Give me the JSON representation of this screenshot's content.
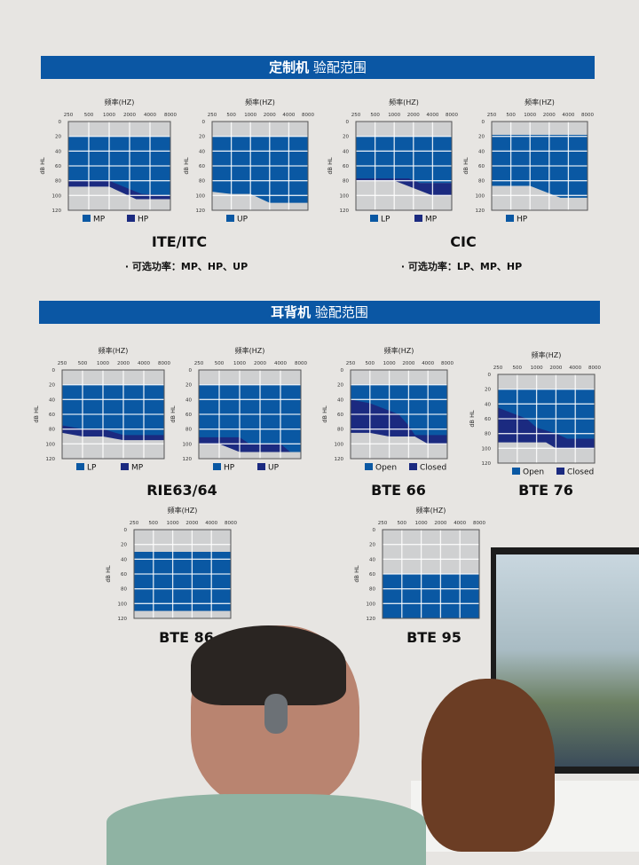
{
  "section1": {
    "title_bold": "定制机",
    "title_rest": "验配范围",
    "groups": [
      {
        "model": "ITE/ITC",
        "note": "· 可选功率：MP、HP、UP"
      },
      {
        "model": "CIC",
        "note": "· 可选功率：LP、MP、HP"
      }
    ]
  },
  "section2": {
    "title_bold": "耳背机",
    "title_rest": "验配范围",
    "models": [
      "RIE63/64",
      "BTE 66",
      "BTE 76",
      "BTE 86",
      "BTE 95"
    ]
  },
  "colors": {
    "banner": "#0b57a4",
    "light_blue": "#0a58a3",
    "dark_blue": "#1b2a80",
    "gray_area": "#cfd0d1",
    "grid": "#ffffff"
  },
  "chart_data": [
    {
      "type": "area",
      "xlabel": "频率(HZ)",
      "ylabel": "dB HL",
      "x_ticks": [
        250,
        500,
        1000,
        2000,
        4000,
        8000
      ],
      "y_ticks": [
        0,
        20,
        40,
        60,
        80,
        100,
        120
      ],
      "xscale": "log",
      "ylim": [
        0,
        120
      ],
      "y_inverted": true,
      "grid": true,
      "legend": "bottom",
      "series": [
        {
          "name": "HP",
          "color": "dark",
          "top": [
            [
              250,
              20
            ],
            [
              8000,
              20
            ]
          ],
          "bottom": [
            [
              250,
              88
            ],
            [
              1000,
              88
            ],
            [
              2500,
              105
            ],
            [
              8000,
              105
            ]
          ]
        },
        {
          "name": "MP",
          "color": "light",
          "top": [
            [
              250,
              20
            ],
            [
              8000,
              20
            ]
          ],
          "bottom": [
            [
              250,
              80
            ],
            [
              1000,
              80
            ],
            [
              3000,
              98
            ],
            [
              8000,
              100
            ]
          ]
        }
      ]
    },
    {
      "type": "area",
      "xlabel": "频率(HZ)",
      "ylabel": "dB HL",
      "x_ticks": [
        250,
        500,
        1000,
        2000,
        4000,
        8000
      ],
      "y_ticks": [
        0,
        20,
        40,
        60,
        80,
        100,
        120
      ],
      "xscale": "log",
      "ylim": [
        0,
        120
      ],
      "y_inverted": true,
      "grid": true,
      "legend": "bottom",
      "series": [
        {
          "name": "UP",
          "color": "light",
          "top": [
            [
              250,
              20
            ],
            [
              8000,
              20
            ]
          ],
          "bottom": [
            [
              250,
              95
            ],
            [
              500,
              98
            ],
            [
              1000,
              98
            ],
            [
              2000,
              110
            ],
            [
              8000,
              110
            ]
          ]
        }
      ]
    },
    {
      "type": "area",
      "xlabel": "频率(HZ)",
      "ylabel": "dB HL",
      "x_ticks": [
        250,
        500,
        1000,
        2000,
        4000,
        8000
      ],
      "y_ticks": [
        0,
        20,
        40,
        60,
        80,
        100,
        120
      ],
      "xscale": "log",
      "ylim": [
        0,
        120
      ],
      "y_inverted": true,
      "grid": true,
      "legend": "bottom",
      "series": [
        {
          "name": "MP",
          "color": "dark",
          "top": [
            [
              250,
              75
            ],
            [
              1700,
              75
            ],
            [
              2500,
              83
            ],
            [
              8000,
              83
            ]
          ],
          "bottom": [
            [
              250,
              80
            ],
            [
              1000,
              80
            ],
            [
              4000,
              100
            ],
            [
              8000,
              100
            ]
          ]
        },
        {
          "name": "LP",
          "color": "light",
          "top": [
            [
              250,
              20
            ],
            [
              8000,
              20
            ]
          ],
          "bottom": [
            [
              250,
              77
            ],
            [
              1700,
              77
            ],
            [
              2500,
              83
            ],
            [
              8000,
              83
            ]
          ]
        }
      ],
      "legend_order": [
        "LP",
        "MP"
      ]
    },
    {
      "type": "area",
      "xlabel": "频率(HZ)",
      "ylabel": "dB HL",
      "x_ticks": [
        250,
        500,
        1000,
        2000,
        4000,
        8000
      ],
      "y_ticks": [
        0,
        20,
        40,
        60,
        80,
        100,
        120
      ],
      "xscale": "log",
      "ylim": [
        0,
        120
      ],
      "y_inverted": true,
      "grid": true,
      "legend": "bottom",
      "series": [
        {
          "name": "HP",
          "color": "light",
          "top": [
            [
              250,
              18
            ],
            [
              8000,
              18
            ]
          ],
          "bottom": [
            [
              250,
              87
            ],
            [
              1000,
              87
            ],
            [
              3000,
              103
            ],
            [
              8000,
              103
            ]
          ]
        }
      ]
    },
    {
      "type": "area",
      "xlabel": "频率(HZ)",
      "ylabel": "dB HL",
      "x_ticks": [
        250,
        500,
        1000,
        2000,
        4000,
        8000
      ],
      "y_ticks": [
        0,
        20,
        40,
        60,
        80,
        100,
        120
      ],
      "xscale": "log",
      "ylim": [
        0,
        120
      ],
      "y_inverted": true,
      "grid": true,
      "legend": "bottom",
      "series": [
        {
          "name": "MP",
          "color": "dark",
          "top": [
            [
              250,
              20
            ],
            [
              8000,
              20
            ]
          ],
          "bottom": [
            [
              250,
              85
            ],
            [
              500,
              90
            ],
            [
              1000,
              90
            ],
            [
              2000,
              95
            ],
            [
              8000,
              95
            ]
          ]
        },
        {
          "name": "LP",
          "color": "light",
          "top": [
            [
              250,
              20
            ],
            [
              8000,
              20
            ]
          ],
          "bottom": [
            [
              250,
              75
            ],
            [
              500,
              80
            ],
            [
              1000,
              80
            ],
            [
              2000,
              88
            ],
            [
              8000,
              88
            ]
          ]
        }
      ],
      "legend_order": [
        "LP",
        "MP"
      ]
    },
    {
      "type": "area",
      "xlabel": "频率(HZ)",
      "ylabel": "dB HL",
      "x_ticks": [
        250,
        500,
        1000,
        2000,
        4000,
        8000
      ],
      "y_ticks": [
        0,
        20,
        40,
        60,
        80,
        100,
        120
      ],
      "xscale": "log",
      "ylim": [
        0,
        120
      ],
      "y_inverted": true,
      "grid": true,
      "legend": "bottom",
      "series": [
        {
          "name": "UP",
          "color": "dark",
          "top": [
            [
              250,
              20
            ],
            [
              8000,
              20
            ]
          ],
          "bottom": [
            [
              250,
              100
            ],
            [
              500,
              100
            ],
            [
              1000,
              111
            ],
            [
              8000,
              111
            ]
          ]
        },
        {
          "name": "HP",
          "color": "light",
          "top": [
            [
              250,
              20
            ],
            [
              8000,
              20
            ]
          ],
          "bottom": [
            [
              250,
              91
            ],
            [
              1000,
              91
            ],
            [
              1400,
              100
            ],
            [
              4000,
              100
            ],
            [
              5600,
              111
            ],
            [
              8000,
              111
            ]
          ]
        }
      ],
      "legend_order": [
        "HP",
        "UP"
      ]
    },
    {
      "type": "area",
      "xlabel": "频率(HZ)",
      "ylabel": "dB HL",
      "x_ticks": [
        250,
        500,
        1000,
        2000,
        4000,
        8000
      ],
      "y_ticks": [
        0,
        20,
        40,
        60,
        80,
        100,
        120
      ],
      "xscale": "log",
      "ylim": [
        0,
        120
      ],
      "y_inverted": true,
      "grid": true,
      "legend": "bottom",
      "series": [
        {
          "name": "Closed",
          "color": "dark",
          "top": [
            [
              250,
              20
            ],
            [
              8000,
              20
            ]
          ],
          "bottom": [
            [
              250,
              85
            ],
            [
              500,
              85
            ],
            [
              1000,
              90
            ],
            [
              2500,
              90
            ],
            [
              4000,
              100
            ],
            [
              8000,
              100
            ]
          ]
        },
        {
          "name": "Open",
          "color": "light",
          "top": [
            [
              250,
              20
            ],
            [
              8000,
              20
            ]
          ],
          "bottom": [
            [
              250,
              40
            ],
            [
              500,
              45
            ],
            [
              1000,
              55
            ],
            [
              1400,
              60
            ],
            [
              2000,
              75
            ],
            [
              2500,
              88
            ],
            [
              8000,
              88
            ]
          ]
        }
      ],
      "legend_order": [
        "Open",
        "Closed"
      ]
    },
    {
      "type": "area",
      "xlabel": "频率(HZ)",
      "ylabel": "dB HL",
      "x_ticks": [
        250,
        500,
        1000,
        2000,
        4000,
        8000
      ],
      "y_ticks": [
        0,
        20,
        40,
        60,
        80,
        100,
        120
      ],
      "xscale": "log",
      "ylim": [
        0,
        120
      ],
      "y_inverted": true,
      "grid": true,
      "legend": "bottom",
      "series": [
        {
          "name": "Closed",
          "color": "dark",
          "top": [
            [
              250,
              20
            ],
            [
              8000,
              20
            ]
          ],
          "bottom": [
            [
              250,
              92
            ],
            [
              1400,
              92
            ],
            [
              2000,
              100
            ],
            [
              8000,
              100
            ]
          ]
        },
        {
          "name": "Open",
          "color": "light",
          "top": [
            [
              250,
              20
            ],
            [
              8000,
              20
            ]
          ],
          "bottom": [
            [
              250,
              45
            ],
            [
              500,
              55
            ],
            [
              700,
              60
            ],
            [
              1000,
              72
            ],
            [
              2000,
              80
            ],
            [
              3000,
              87
            ],
            [
              8000,
              87
            ]
          ]
        }
      ],
      "legend_order": [
        "Open",
        "Closed"
      ]
    },
    {
      "type": "area",
      "xlabel": "频率(HZ)",
      "ylabel": "dB HL",
      "x_ticks": [
        250,
        500,
        1000,
        2000,
        4000,
        8000
      ],
      "y_ticks": [
        0,
        20,
        40,
        60,
        80,
        100,
        120
      ],
      "xscale": "log",
      "ylim": [
        0,
        120
      ],
      "y_inverted": true,
      "grid": true,
      "legend": "none",
      "series": [
        {
          "color": "light",
          "top": [
            [
              250,
              30
            ],
            [
              8000,
              30
            ]
          ],
          "bottom": [
            [
              250,
              110
            ],
            [
              8000,
              110
            ]
          ]
        }
      ]
    },
    {
      "type": "area",
      "xlabel": "频率(HZ)",
      "ylabel": "dB HL",
      "x_ticks": [
        250,
        500,
        1000,
        2000,
        4000,
        8000
      ],
      "y_ticks": [
        0,
        20,
        40,
        60,
        80,
        100,
        120
      ],
      "xscale": "log",
      "ylim": [
        0,
        120
      ],
      "y_inverted": true,
      "grid": true,
      "legend": "none",
      "series": [
        {
          "color": "light",
          "top": [
            [
              250,
              60
            ],
            [
              8000,
              60
            ]
          ],
          "bottom": [
            [
              250,
              120
            ],
            [
              8000,
              120
            ]
          ]
        }
      ]
    }
  ]
}
